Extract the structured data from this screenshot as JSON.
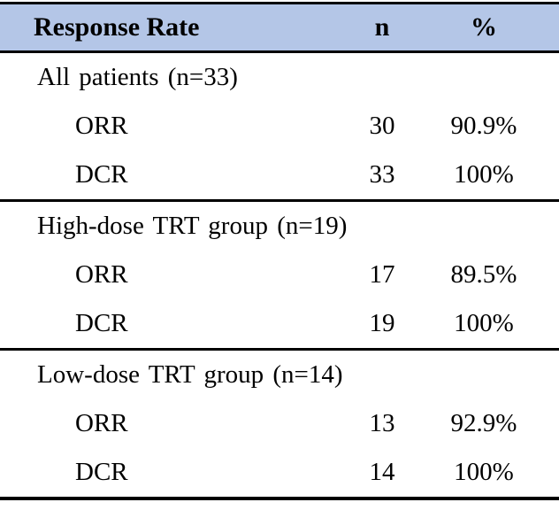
{
  "table": {
    "header": {
      "response_rate": "Response Rate",
      "n": "n",
      "percent": "%"
    },
    "sections": [
      {
        "group_label": "All patients (n=33)",
        "rows": [
          {
            "label": "ORR",
            "n": "30",
            "pct": "90.9%"
          },
          {
            "label": "DCR",
            "n": "33",
            "pct": "100%"
          }
        ]
      },
      {
        "group_label": "High-dose TRT group (n=19)",
        "rows": [
          {
            "label": "ORR",
            "n": "17",
            "pct": "89.5%"
          },
          {
            "label": "DCR",
            "n": "19",
            "pct": "100%"
          }
        ]
      },
      {
        "group_label": "Low-dose TRT group (n=14)",
        "rows": [
          {
            "label": "ORR",
            "n": "13",
            "pct": "92.9%"
          },
          {
            "label": "DCR",
            "n": "14",
            "pct": "100%"
          }
        ]
      }
    ]
  },
  "colors": {
    "header_bg": "#b4c6e7",
    "border": "#000000",
    "text": "#000000"
  },
  "chart_data": {
    "type": "table",
    "title": "Response Rate",
    "columns": [
      "Response Rate",
      "n",
      "%"
    ],
    "rows": [
      [
        "All patients (n=33)",
        "",
        ""
      ],
      [
        "ORR",
        "30",
        "90.9%"
      ],
      [
        "DCR",
        "33",
        "100%"
      ],
      [
        "High-dose TRT group (n=19)",
        "",
        ""
      ],
      [
        "ORR",
        "17",
        "89.5%"
      ],
      [
        "DCR",
        "19",
        "100%"
      ],
      [
        "Low-dose TRT group (n=14)",
        "",
        ""
      ],
      [
        "ORR",
        "13",
        "92.9%"
      ],
      [
        "DCR",
        "14",
        "100%"
      ]
    ]
  }
}
